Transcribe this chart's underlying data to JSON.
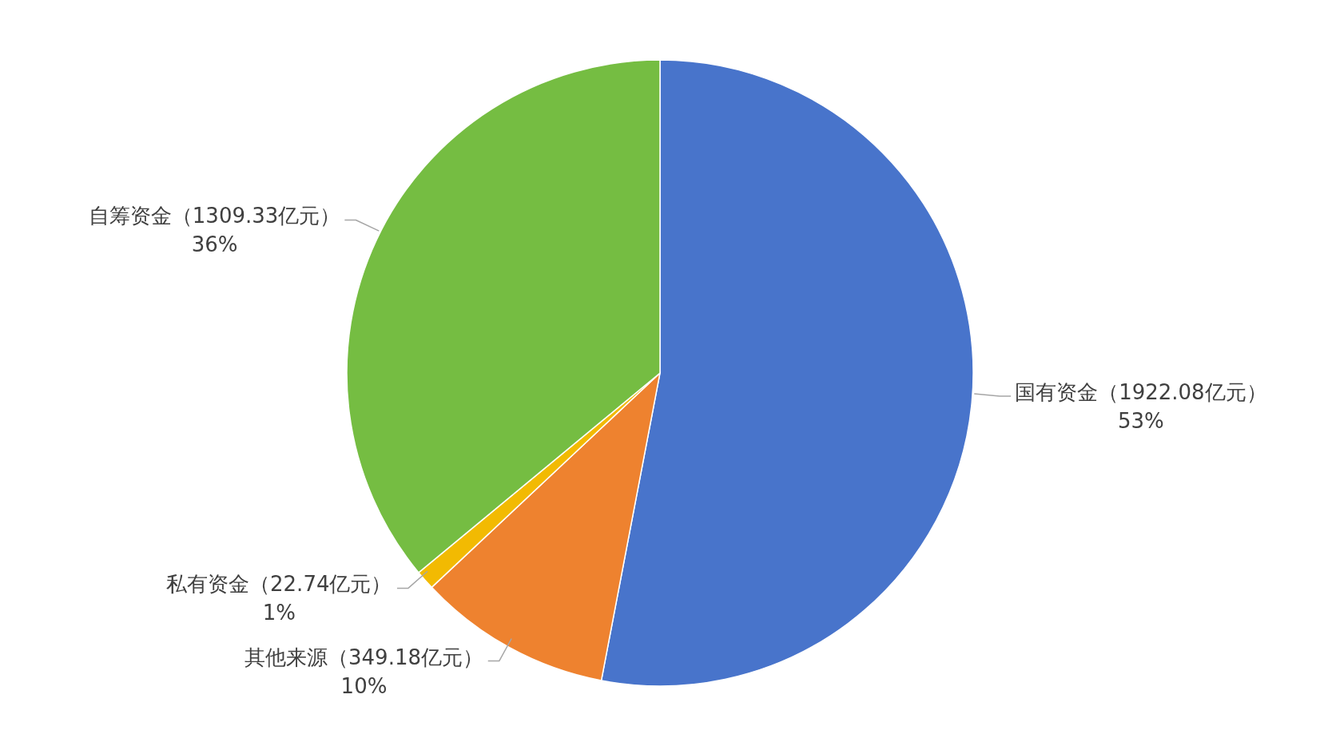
{
  "chart_data": {
    "type": "pie",
    "categories": [
      "国有资金（1922.08亿元）",
      "其他来源（349.18亿元）",
      "私有资金（22.74亿元）",
      "自筹资金（1309.33亿元）"
    ],
    "values": [
      53,
      10,
      1,
      36
    ],
    "value_labels": [
      "53%",
      "10%",
      "1%",
      "36%"
    ],
    "colors": [
      "#4874cb",
      "#ee822f",
      "#f2ba02",
      "#75bd42"
    ]
  }
}
